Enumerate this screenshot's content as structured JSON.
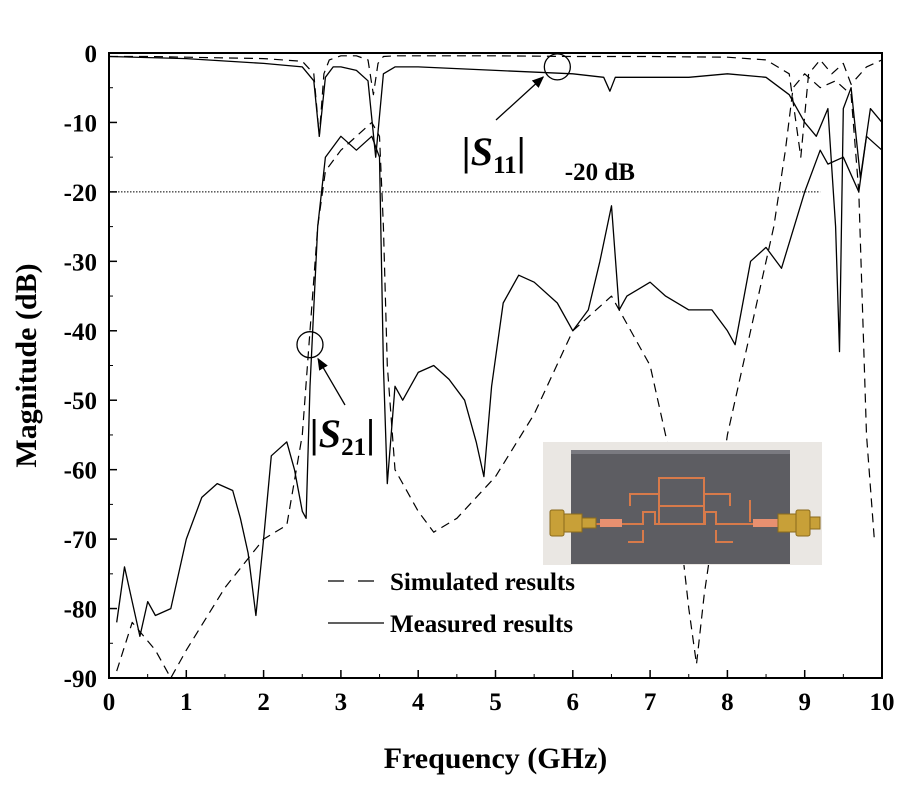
{
  "chart_data": {
    "type": "line",
    "xlabel": "Frequency (GHz)",
    "ylabel": "Magnitude (dB)",
    "xlim": [
      0,
      10
    ],
    "ylim": [
      -90,
      0
    ],
    "xticks": [
      "0",
      "1",
      "2",
      "3",
      "4",
      "5",
      "6",
      "7",
      "8",
      "9",
      "10"
    ],
    "yticks": [
      "0",
      "-10",
      "-20",
      "-30",
      "-40",
      "-50",
      "-60",
      "-70",
      "-80",
      "-90"
    ],
    "grid": false,
    "legend_position": "bottom-center",
    "reference_line": {
      "y": -20,
      "label": "-20 dB"
    },
    "annotations": [
      {
        "main": "|S",
        "sub": "11",
        "close": "|",
        "target_x": 5.8,
        "target_y": -2
      },
      {
        "main": "|S",
        "sub": "21",
        "close": "|",
        "target_x": 2.6,
        "target_y": -42
      }
    ],
    "inset_photo": "filter-photo",
    "series": [
      {
        "name": "Simulated results",
        "metric": "S11",
        "style": "dashed",
        "x": [
          0.0,
          0.5,
          1.0,
          2.0,
          2.5,
          2.65,
          2.72,
          2.78,
          2.85,
          3.0,
          3.2,
          3.35,
          3.42,
          3.48,
          3.55,
          3.7,
          4.0,
          5.0,
          6.0,
          7.0,
          8.0,
          8.5,
          8.8,
          8.95,
          9.05,
          9.2,
          9.35,
          9.5,
          9.6,
          9.8,
          10.0
        ],
        "y": [
          -0.5,
          -0.5,
          -0.6,
          -0.8,
          -1.2,
          -3.0,
          -12.0,
          -3.0,
          -1.0,
          -0.4,
          -0.4,
          -1.0,
          -6.0,
          -1.5,
          -0.5,
          -0.4,
          -0.4,
          -0.4,
          -0.5,
          -0.5,
          -0.6,
          -1.0,
          -3.0,
          -15.0,
          -3.0,
          -1.0,
          -3.0,
          -1.5,
          -4.5,
          -2.0,
          -1.0
        ]
      },
      {
        "name": "Simulated results",
        "metric": "S21",
        "style": "dashed",
        "x": [
          0.1,
          0.3,
          0.6,
          0.8,
          1.0,
          1.5,
          2.0,
          2.3,
          2.5,
          2.6,
          2.7,
          2.8,
          3.0,
          3.2,
          3.4,
          3.5,
          3.55,
          3.6,
          3.7,
          4.0,
          4.2,
          4.5,
          5.0,
          5.5,
          6.0,
          6.5,
          7.0,
          7.3,
          7.5,
          7.6,
          7.7,
          8.0,
          8.3,
          8.6,
          8.75,
          8.85,
          9.0,
          9.2,
          9.4,
          9.6,
          9.7,
          9.8,
          9.9
        ],
        "y": [
          -89,
          -82,
          -86,
          -90,
          -86,
          -77,
          -70,
          -68,
          -55,
          -40,
          -25,
          -17,
          -14,
          -12,
          -10,
          -12,
          -25,
          -45,
          -60,
          -66,
          -69,
          -67,
          -61,
          -52,
          -40,
          -35,
          -45,
          -60,
          -80,
          -88,
          -78,
          -55,
          -40,
          -25,
          -14,
          -5,
          -3,
          -5,
          -4,
          -6,
          -20,
          -55,
          -70
        ]
      },
      {
        "name": "Measured results",
        "metric": "S11",
        "style": "solid",
        "x": [
          0.0,
          1.0,
          2.0,
          2.5,
          2.65,
          2.72,
          2.8,
          2.9,
          3.0,
          3.2,
          3.35,
          3.45,
          3.55,
          3.7,
          4.0,
          5.0,
          6.0,
          6.4,
          6.48,
          6.55,
          6.7,
          7.0,
          7.5,
          8.0,
          8.5,
          8.8,
          9.0,
          9.15,
          9.3,
          9.4,
          9.45,
          9.5,
          9.6,
          9.72,
          9.85,
          10.0
        ],
        "y": [
          -0.5,
          -0.8,
          -1.5,
          -2.0,
          -4.0,
          -12.0,
          -3.5,
          -2.0,
          -2.0,
          -2.5,
          -4.0,
          -15.0,
          -3.0,
          -2.0,
          -2.0,
          -2.5,
          -3.0,
          -3.5,
          -5.5,
          -3.5,
          -3.5,
          -3.5,
          -3.5,
          -3.0,
          -3.5,
          -6.0,
          -10.0,
          -12.0,
          -8.0,
          -25.0,
          -43.0,
          -8.0,
          -5.0,
          -18.0,
          -8.0,
          -10.0
        ]
      },
      {
        "name": "Measured results",
        "metric": "S21",
        "style": "solid",
        "x": [
          0.1,
          0.2,
          0.3,
          0.4,
          0.5,
          0.6,
          0.8,
          1.0,
          1.2,
          1.4,
          1.6,
          1.7,
          1.8,
          1.9,
          2.0,
          2.1,
          2.2,
          2.3,
          2.4,
          2.5,
          2.55,
          2.6,
          2.7,
          2.8,
          3.0,
          3.2,
          3.4,
          3.5,
          3.55,
          3.6,
          3.7,
          3.8,
          4.0,
          4.2,
          4.4,
          4.6,
          4.75,
          4.85,
          4.95,
          5.1,
          5.3,
          5.5,
          5.8,
          6.0,
          6.2,
          6.35,
          6.5,
          6.6,
          6.7,
          7.0,
          7.2,
          7.5,
          7.8,
          8.0,
          8.1,
          8.3,
          8.5,
          8.7,
          9.0,
          9.2,
          9.3,
          9.5,
          9.7,
          9.8,
          9.9,
          10.0
        ],
        "y": [
          -82,
          -74,
          -79,
          -84,
          -79,
          -81,
          -80,
          -70,
          -64,
          -62,
          -63,
          -67,
          -72,
          -81,
          -70,
          -58,
          -57,
          -56,
          -60,
          -66,
          -67,
          -48,
          -25,
          -15,
          -12,
          -14,
          -12,
          -15,
          -45,
          -62,
          -48,
          -50,
          -46,
          -45,
          -47,
          -50,
          -56,
          -61,
          -48,
          -36,
          -32,
          -33,
          -36,
          -40,
          -37,
          -30,
          -22,
          -37,
          -35,
          -33,
          -35,
          -37,
          -37,
          -40,
          -42,
          -30,
          -28,
          -31,
          -20,
          -14,
          -16,
          -15,
          -20,
          -12,
          -13,
          -14
        ]
      }
    ]
  }
}
